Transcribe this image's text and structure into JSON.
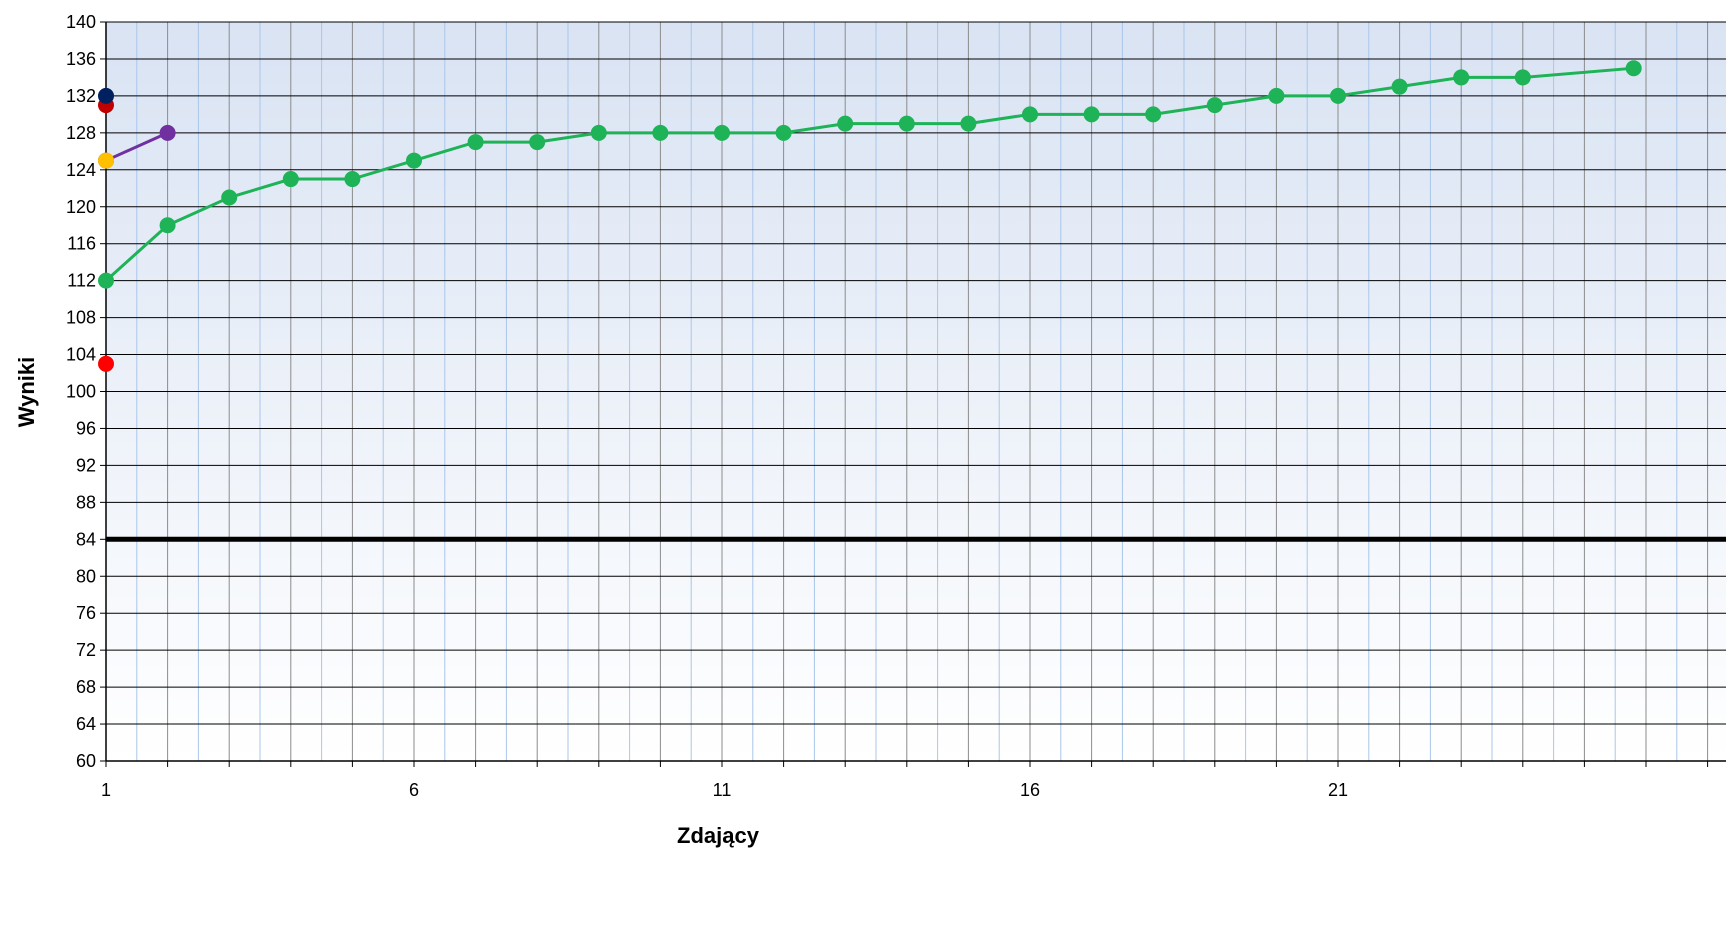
{
  "chart_data": {
    "type": "line",
    "title": "",
    "xlabel": "Zdający",
    "ylabel": "Wyniki",
    "xlim": [
      1,
      26
    ],
    "ylim": [
      60,
      140
    ],
    "x_ticks": [
      1,
      6,
      11,
      16,
      21
    ],
    "x_tick_labels": [
      "1",
      "6",
      "11",
      "16",
      "21"
    ],
    "y_ticks": [
      60,
      64,
      68,
      72,
      76,
      80,
      84,
      88,
      92,
      96,
      100,
      104,
      108,
      112,
      116,
      120,
      124,
      128,
      132,
      136,
      140
    ],
    "y_tick_labels": [
      "60",
      "64",
      "68",
      "72",
      "76",
      "80",
      "84",
      "88",
      "92",
      "96",
      "100",
      "104",
      "108",
      "112",
      "116",
      "120",
      "124",
      "128",
      "132",
      "136",
      "140"
    ],
    "grid": true,
    "legend": "none",
    "reference_line": {
      "y": 84,
      "color": "#000000"
    },
    "series": [
      {
        "color": "#1db356",
        "x": [
          1,
          2,
          3,
          4,
          5,
          6,
          7,
          8,
          9,
          10,
          11,
          12,
          13,
          14,
          15,
          16,
          17,
          18,
          19,
          20,
          21,
          22,
          23,
          24,
          25.8
        ],
        "values": [
          112,
          118,
          121,
          123,
          123,
          125,
          127,
          127,
          128,
          128,
          128,
          128,
          129,
          129,
          129,
          130,
          130,
          130,
          131,
          132,
          132,
          133,
          134,
          134,
          135
        ]
      },
      {
        "color": "#7030a0",
        "x": [
          1,
          2
        ],
        "values": [
          125,
          128
        ]
      },
      {
        "color": "#ffc000",
        "x": [
          1
        ],
        "values": [
          125
        ]
      },
      {
        "color": "#ff0000",
        "x": [
          1
        ],
        "values": [
          103
        ]
      },
      {
        "color": "#c00000",
        "x": [
          1
        ],
        "values": [
          131
        ]
      },
      {
        "color": "#002060",
        "x": [
          1
        ],
        "values": [
          132
        ]
      }
    ],
    "colors": {
      "plot_bg_top": "#d9e3f3",
      "plot_bg_bottom": "#ffffff",
      "grid_major": "#8c8c8c",
      "grid_minor": "#a9c6ea",
      "axis": "#000000"
    }
  }
}
